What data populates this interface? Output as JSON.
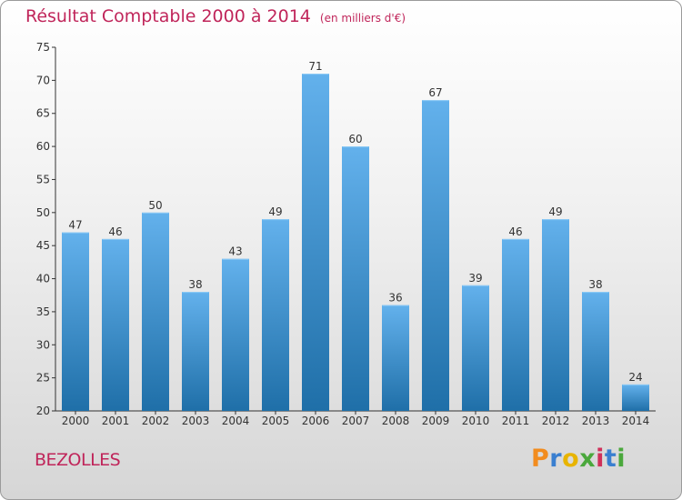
{
  "header": {
    "title": "Résultat Comptable 2000 à 2014",
    "unit": "(en milliers d'€)"
  },
  "commune": "BEZOLLES",
  "logo": {
    "text": "Proxiti",
    "letters": [
      "P",
      "r",
      "o",
      "x",
      "i",
      "t",
      "i"
    ],
    "colors": [
      "#f28c1e",
      "#3a7fd0",
      "#e8b400",
      "#4aa83c",
      "#d0305a",
      "#3a7fd0",
      "#4aa83c"
    ]
  },
  "colors": {
    "title": "#c0255a",
    "bar_top": "#63b1ec",
    "bar_bottom": "#1f6fa8",
    "axis": "#333333"
  },
  "chart_data": {
    "type": "bar",
    "title": "Résultat Comptable 2000 à 2014",
    "ylabel": "en milliers d'€",
    "xlabel": "",
    "categories": [
      "2000",
      "2001",
      "2002",
      "2003",
      "2004",
      "2005",
      "2006",
      "2007",
      "2008",
      "2009",
      "2010",
      "2011",
      "2012",
      "2013",
      "2014"
    ],
    "values": [
      47,
      46,
      50,
      38,
      43,
      49,
      71,
      60,
      36,
      67,
      39,
      46,
      49,
      38,
      24
    ],
    "ylim": [
      20,
      75
    ],
    "yticks": [
      20,
      25,
      30,
      35,
      40,
      45,
      50,
      55,
      60,
      65,
      70,
      75
    ],
    "grid": false,
    "data_labels": true
  }
}
